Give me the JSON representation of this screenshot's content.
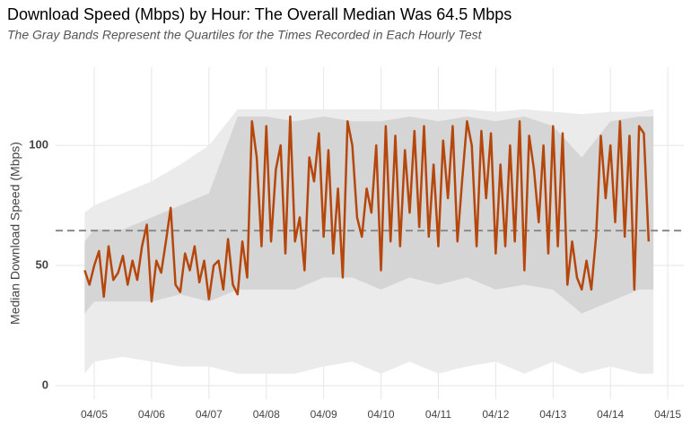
{
  "chart_data": {
    "type": "line",
    "title": "Download Speed (Mbps) by Hour: The Overall Median Was 64.5 Mbps",
    "subtitle": "The Gray Bands Represent the Quartiles for the Times Recorded in Each Hourly Test",
    "y_label": "Median Download Speed (Mbps)",
    "median_line": 64.5,
    "x": [
      4.833,
      4.917,
      5.0,
      5.083,
      5.167,
      5.25,
      5.333,
      5.417,
      5.5,
      5.583,
      5.667,
      5.75,
      5.833,
      5.917,
      6.0,
      6.083,
      6.167,
      6.25,
      6.333,
      6.417,
      6.5,
      6.583,
      6.667,
      6.75,
      6.833,
      6.917,
      7.0,
      7.083,
      7.167,
      7.25,
      7.333,
      7.417,
      7.5,
      7.583,
      7.667,
      7.75,
      7.833,
      7.917,
      8.0,
      8.083,
      8.167,
      8.25,
      8.333,
      8.417,
      8.5,
      8.583,
      8.667,
      8.75,
      8.833,
      8.917,
      9.0,
      9.083,
      9.167,
      9.25,
      9.333,
      9.417,
      9.5,
      9.583,
      9.667,
      9.75,
      9.833,
      9.917,
      10.0,
      10.083,
      10.167,
      10.25,
      10.333,
      10.417,
      10.5,
      10.583,
      10.667,
      10.75,
      10.833,
      10.917,
      11.0,
      11.083,
      11.167,
      11.25,
      11.333,
      11.417,
      11.5,
      11.583,
      11.667,
      11.75,
      11.833,
      11.917,
      12.0,
      12.083,
      12.167,
      12.25,
      12.333,
      12.417,
      12.5,
      12.583,
      12.667,
      12.75,
      12.833,
      12.917,
      13.0,
      13.083,
      13.167,
      13.25,
      13.333,
      13.417,
      13.5,
      13.583,
      13.667,
      13.75,
      13.833,
      13.917,
      14.0,
      14.083,
      14.167,
      14.25,
      14.333,
      14.417,
      14.5,
      14.583,
      14.667
    ],
    "series": [
      {
        "color": "#b5470c",
        "values": [
          48,
          42,
          50,
          56,
          37,
          58,
          44,
          47,
          54,
          42,
          52,
          44,
          58,
          67,
          35,
          52,
          47,
          60,
          74,
          42,
          39,
          55,
          48,
          58,
          43,
          52,
          36,
          50,
          52,
          40,
          61,
          42,
          38,
          60,
          45,
          110,
          95,
          58,
          108,
          60,
          90,
          100,
          55,
          112,
          60,
          70,
          48,
          95,
          85,
          105,
          62,
          98,
          55,
          82,
          45,
          110,
          100,
          70,
          62,
          82,
          72,
          100,
          48,
          108,
          60,
          104,
          58,
          98,
          72,
          106,
          66,
          108,
          62,
          92,
          58,
          102,
          78,
          108,
          60,
          86,
          110,
          100,
          58,
          106,
          78,
          105,
          55,
          92,
          58,
          100,
          60,
          110,
          48,
          104,
          90,
          68,
          100,
          55,
          108,
          58,
          105,
          42,
          60,
          45,
          40,
          52,
          40,
          62,
          104,
          78,
          100,
          68,
          110,
          62,
          104,
          40,
          108,
          105,
          60
        ]
      }
    ],
    "bands": {
      "x": [
        4.833,
        5,
        5.5,
        6,
        6.5,
        7,
        7.5,
        8,
        8.5,
        9,
        9.5,
        10,
        10.5,
        11,
        11.5,
        12,
        12.5,
        13,
        13.5,
        14,
        14.5,
        14.75
      ],
      "outer": {
        "color": "#ebebeb",
        "low": [
          5,
          10,
          12,
          10,
          8,
          8,
          5,
          5,
          5,
          8,
          10,
          5,
          10,
          5,
          8,
          10,
          5,
          10,
          5,
          8,
          5,
          5
        ],
        "high": [
          72,
          75,
          80,
          85,
          92,
          100,
          115,
          115,
          115,
          115,
          115,
          115,
          115,
          115,
          115,
          114,
          115,
          114,
          113,
          114,
          114,
          115
        ]
      },
      "inner": {
        "color": "#d5d5d5",
        "low": [
          30,
          35,
          35,
          35,
          38,
          35,
          40,
          40,
          40,
          45,
          45,
          40,
          45,
          42,
          45,
          40,
          42,
          40,
          30,
          35,
          40,
          40
        ],
        "high": [
          60,
          65,
          65,
          70,
          75,
          80,
          112,
          112,
          110,
          112,
          110,
          110,
          112,
          110,
          112,
          110,
          112,
          108,
          95,
          110,
          112,
          112
        ]
      }
    },
    "xlim": [
      4.327,
      15.28
    ],
    "xticks": [
      {
        "value": 5,
        "label": "04/05"
      },
      {
        "value": 6,
        "label": "04/06"
      },
      {
        "value": 7,
        "label": "04/07"
      },
      {
        "value": 8,
        "label": "04/08"
      },
      {
        "value": 9,
        "label": "04/09"
      },
      {
        "value": 10,
        "label": "04/10"
      },
      {
        "value": 11,
        "label": "04/11"
      },
      {
        "value": 12,
        "label": "04/12"
      },
      {
        "value": 13,
        "label": "04/13"
      },
      {
        "value": 14,
        "label": "04/14"
      },
      {
        "value": 15,
        "label": "04/15"
      }
    ],
    "ylim": [
      -5.6,
      132.5
    ],
    "yticks": [
      0,
      50,
      100
    ],
    "grid": true
  }
}
